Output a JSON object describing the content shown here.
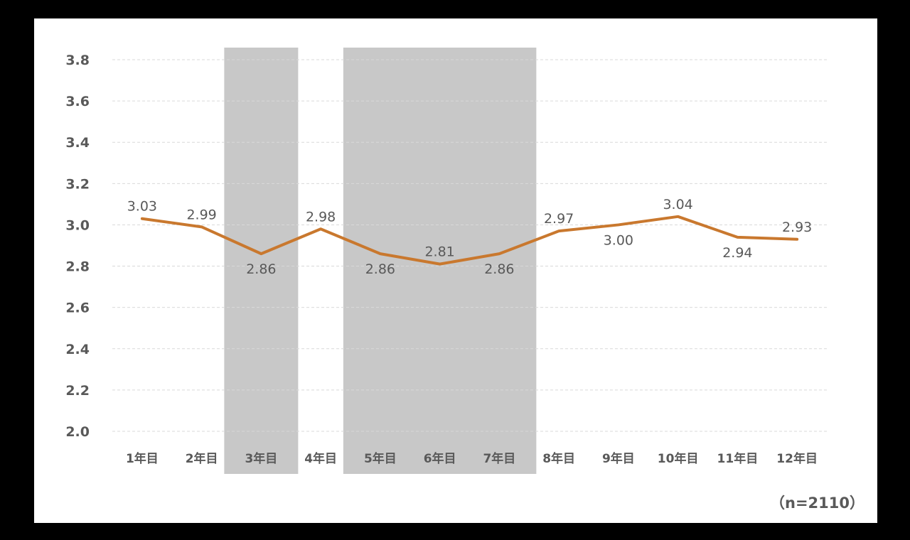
{
  "chart_data": {
    "type": "line",
    "categories": [
      "1年目",
      "2年目",
      "3年目",
      "4年目",
      "5年目",
      "6年目",
      "7年目",
      "8年目",
      "9年目",
      "10年目",
      "11年目",
      "12年目"
    ],
    "series": [
      {
        "values": [
          3.03,
          2.99,
          2.86,
          2.98,
          2.86,
          2.81,
          2.86,
          2.97,
          3.0,
          3.04,
          2.94,
          2.93
        ]
      }
    ],
    "data_labels": [
      "3.03",
      "2.99",
      "2.86",
      "2.98",
      "2.86",
      "2.81",
      "2.86",
      "2.97",
      "3.00",
      "3.04",
      "2.94",
      "2.93"
    ],
    "y_ticks": [
      "2.0",
      "2.2",
      "2.4",
      "2.6",
      "2.8",
      "3.0",
      "3.2",
      "3.4",
      "3.6",
      "3.8"
    ],
    "ylim": [
      2.0,
      3.8
    ],
    "grid": "dashed horizontal",
    "highlighted_categories": [
      "3年目",
      "5年目",
      "6年目",
      "7年目"
    ],
    "colors": {
      "line": "#C9782E",
      "highlight": "#C8C8C8",
      "grid": "#D9D9D9",
      "text": "#595959"
    }
  },
  "footnote": "（n=2110）"
}
